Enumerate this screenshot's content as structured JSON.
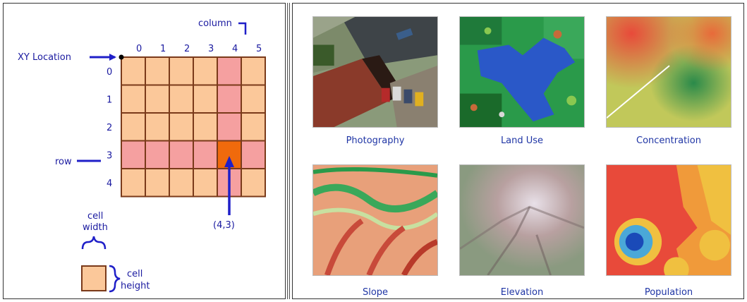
{
  "grid_diagram": {
    "column_label": "column",
    "row_label": "row",
    "xy_location_label": "XY Location",
    "column_numbers": [
      "0",
      "1",
      "2",
      "3",
      "4",
      "5"
    ],
    "row_numbers": [
      "0",
      "1",
      "2",
      "3",
      "4"
    ],
    "highlight_column": 4,
    "highlight_row": 3,
    "coord_label": "(4,3)",
    "cell_width_label_1": "cell",
    "cell_width_label_2": "width",
    "cell_height_label_1": "cell",
    "cell_height_label_2": "height",
    "colors": {
      "cell": "#fbc89a",
      "highlight": "#f5a0a0",
      "selected": "#f06a0c",
      "border": "#7a3a1a",
      "arrow": "#1f1fc8"
    }
  },
  "gallery": [
    {
      "label": "Photography",
      "icon": "aerial-photo-thumbnail"
    },
    {
      "label": "Land Use",
      "icon": "land-use-thumbnail"
    },
    {
      "label": "Concentration",
      "icon": "concentration-thumbnail"
    },
    {
      "label": "Slope",
      "icon": "slope-thumbnail"
    },
    {
      "label": "Elevation",
      "icon": "elevation-thumbnail"
    },
    {
      "label": "Population",
      "icon": "population-thumbnail"
    }
  ]
}
